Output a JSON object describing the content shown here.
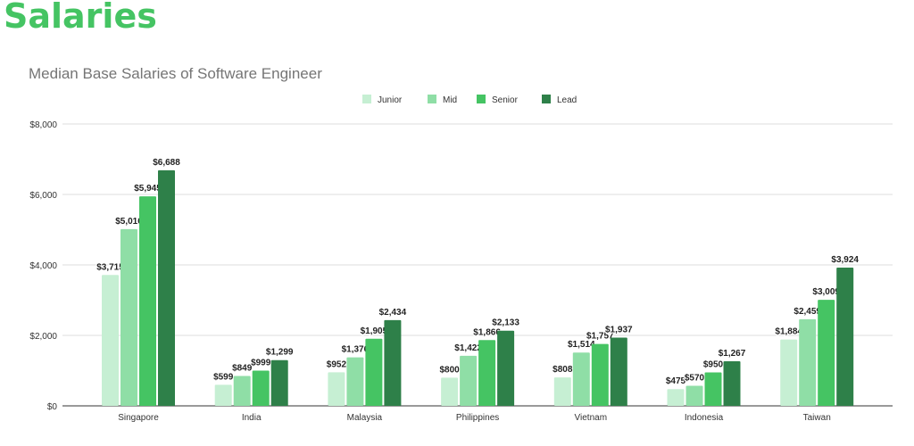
{
  "page": {
    "heading": "Salaries"
  },
  "colors": {
    "heading": "#45c463"
  },
  "chart_data": {
    "type": "bar",
    "title": "Median Base Salaries of Software Engineer",
    "categories": [
      "Singapore",
      "India",
      "Malaysia",
      "Philippines",
      "Vietnam",
      "Indonesia",
      "Taiwan"
    ],
    "series": [
      {
        "name": "Junior",
        "color": "#c6efd3",
        "values": [
          3715,
          599,
          952,
          800,
          808,
          475,
          1884
        ]
      },
      {
        "name": "Mid",
        "color": "#8fdea6",
        "values": [
          5016,
          849,
          1376,
          1422,
          1514,
          570,
          2459
        ]
      },
      {
        "name": "Senior",
        "color": "#45c463",
        "values": [
          5945,
          999,
          1905,
          1866,
          1757,
          950,
          3009
        ]
      },
      {
        "name": "Lead",
        "color": "#2e8049",
        "values": [
          6688,
          1299,
          2434,
          2133,
          1937,
          1267,
          3924
        ]
      }
    ],
    "yticks": [
      "$0",
      "$2,000",
      "$4,000",
      "$6,000",
      "$8,000"
    ],
    "ytick_values": [
      0,
      2000,
      4000,
      6000,
      8000
    ],
    "ylim": [
      0,
      8000
    ],
    "grid": true,
    "legend": "top-center",
    "data_labels": true
  }
}
